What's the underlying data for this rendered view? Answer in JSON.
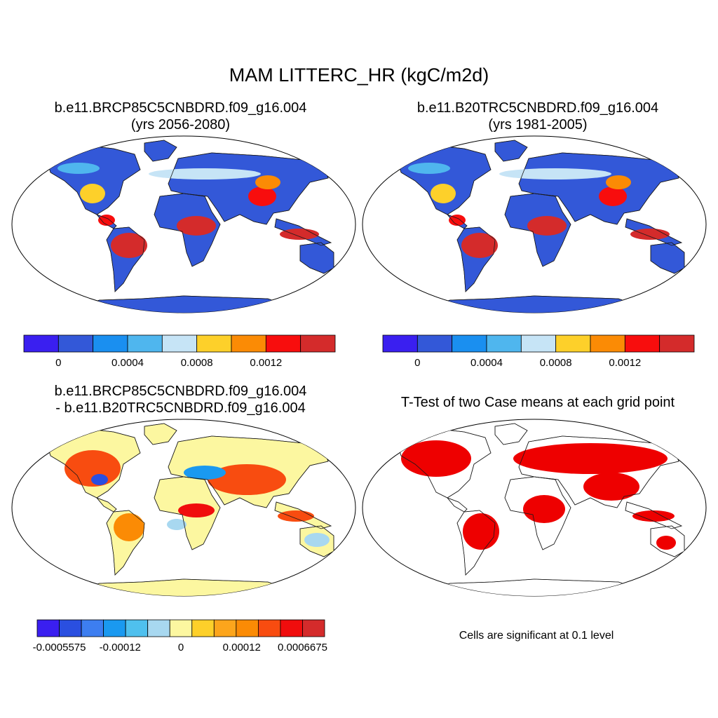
{
  "title": "MAM LITTERC_HR (kgC/m2d)",
  "panels": [
    {
      "title1": "b.e11.BRCP85C5CNBDRD.f09_g16.004",
      "title2": "(yrs 2056-2080)"
    },
    {
      "title1": "b.e11.B20TRC5CNBDRD.f09_g16.004",
      "title2": "(yrs 1981-2005)"
    },
    {
      "title1": "b.e11.BRCP85C5CNBDRD.f09_g16.004",
      "title2": "- b.e11.B20TRC5CNBDRD.f09_g16.004"
    },
    {
      "title1": "T-Test of two Case means at each grid point",
      "title2": ""
    }
  ],
  "colorbars": {
    "case": {
      "colors": [
        "#3a1ff0",
        "#3358d8",
        "#1a8ff0",
        "#4fb6ee",
        "#c6e4f6",
        "#fdd02a",
        "#fb8b05",
        "#f80d0d",
        "#d42b2b"
      ],
      "labels": [
        "0",
        "0.0004",
        "0.0008",
        "0.0012"
      ]
    },
    "diff": {
      "colors": [
        "#3a1ff0",
        "#2a4fe0",
        "#3d7ef0",
        "#1a99f0",
        "#4fc0ee",
        "#a8d8f0",
        "#fcf7a0",
        "#fdd02a",
        "#fca51c",
        "#fb8b05",
        "#f84c10",
        "#f00d0d",
        "#d42b2b"
      ],
      "labels": [
        "-0.0005575",
        "-0.00012",
        "0",
        "0.00012",
        "0.0006675"
      ]
    }
  },
  "significance_color": "#ee0000",
  "note": "Cells are significant at 0.1 level"
}
